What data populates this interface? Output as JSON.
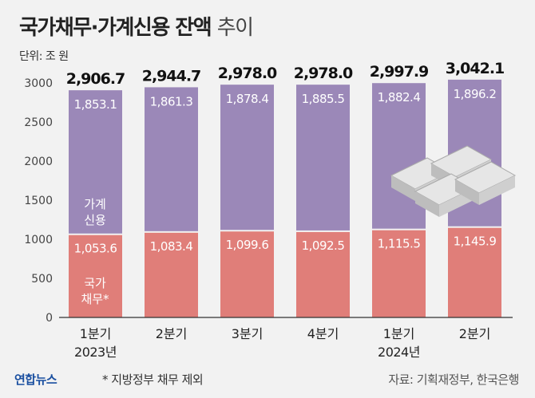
{
  "title_bold": "국가채무·가계신용 잔액",
  "title_light": "추이",
  "unit": "단위: 조 원",
  "logo": "연합뉴스",
  "note": "* 지방정부 채무 제외",
  "source": "자료: 기획재정부, 한국은행",
  "colors": {
    "credit": "#9b88b8",
    "debt": "#e07e79",
    "background": "#f2f2f2"
  },
  "chart_data": {
    "type": "stacked-bar",
    "categories": [
      "1분기",
      "2분기",
      "3분기",
      "4분기",
      "1분기",
      "2분기"
    ],
    "year_labels": [
      "2023년",
      "",
      "",
      "",
      "2024년",
      ""
    ],
    "series": [
      {
        "name": "국가채무*",
        "values": [
          1053.6,
          1083.4,
          1099.6,
          1092.5,
          1115.5,
          1145.9
        ]
      },
      {
        "name": "가계신용",
        "values": [
          1853.1,
          1861.3,
          1878.4,
          1885.5,
          1882.4,
          1896.2
        ]
      }
    ],
    "totals": [
      "2,906.7",
      "2,944.7",
      "2,978.0",
      "2,978.0",
      "2,997.9",
      "3,042.1"
    ],
    "series_labels": [
      "국가채무*",
      "가계신용"
    ],
    "yticks": [
      0,
      500,
      1000,
      1500,
      2000,
      2500,
      3000
    ],
    "ylim": [
      0,
      3000
    ]
  }
}
